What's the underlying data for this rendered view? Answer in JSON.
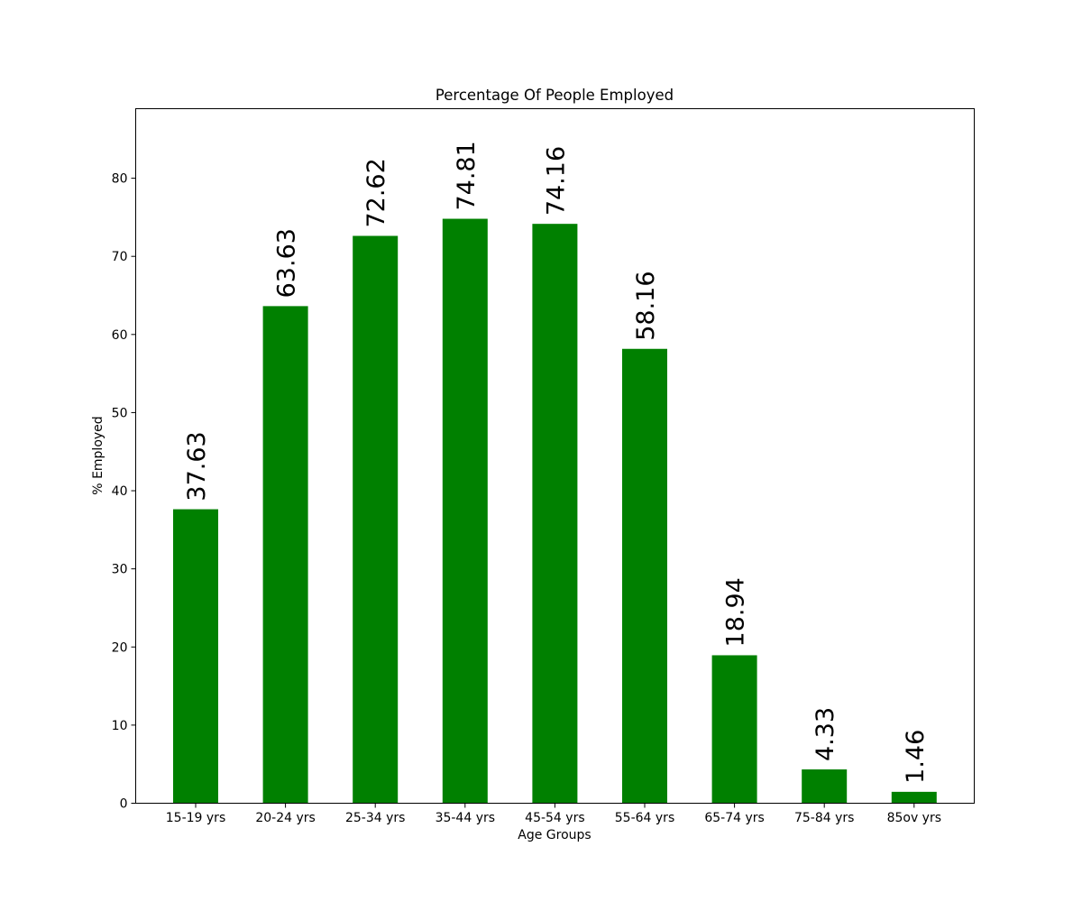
{
  "chart_data": {
    "type": "bar",
    "title": "Percentage Of People Employed",
    "xlabel": "Age Groups",
    "ylabel": "% Employed",
    "categories": [
      "15-19 yrs",
      "20-24 yrs",
      "25-34 yrs",
      "35-44 yrs",
      "45-54 yrs",
      "55-64 yrs",
      "65-74 yrs",
      "75-84 yrs",
      "85ov yrs"
    ],
    "values": [
      37.63,
      63.63,
      72.62,
      74.81,
      74.16,
      58.16,
      18.94,
      4.33,
      1.46
    ],
    "value_labels": [
      "37.63",
      "63.63",
      "72.62",
      "74.81",
      "74.16",
      "58.16",
      "18.94",
      "4.33",
      "1.46"
    ],
    "ylim": [
      0,
      88.9
    ],
    "yticks": [
      0,
      10,
      20,
      30,
      40,
      50,
      60,
      70,
      80
    ],
    "grid": false,
    "bar_color": "#008000"
  }
}
